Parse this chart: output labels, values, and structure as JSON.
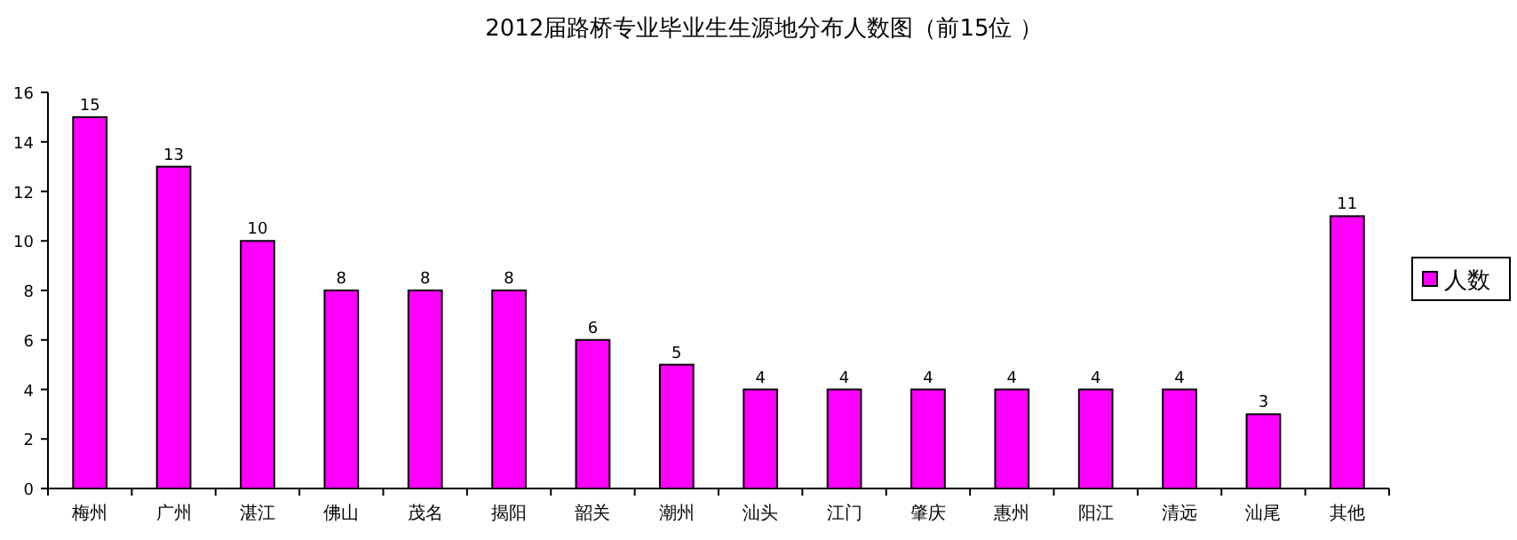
{
  "chart_data": {
    "type": "bar",
    "title": "2012届路桥专业毕业生生源地分布人数图（前15位 ）",
    "categories": [
      "梅州",
      "广州",
      "湛江",
      "佛山",
      "茂名",
      "揭阳",
      "韶关",
      "潮州",
      "汕头",
      "江门",
      "肇庆",
      "惠州",
      "阳江",
      "清远",
      "汕尾",
      "其他"
    ],
    "series": [
      {
        "name": "人数",
        "color": "#ff00ff",
        "values": [
          15,
          13,
          10,
          8,
          8,
          8,
          6,
          5,
          4,
          4,
          4,
          4,
          4,
          4,
          3,
          11
        ]
      }
    ],
    "ylim": [
      0,
      16
    ],
    "yticks": [
      0,
      2,
      4,
      6,
      8,
      10,
      12,
      14,
      16
    ],
    "data_labels": true,
    "legend": "right",
    "grid": false
  }
}
